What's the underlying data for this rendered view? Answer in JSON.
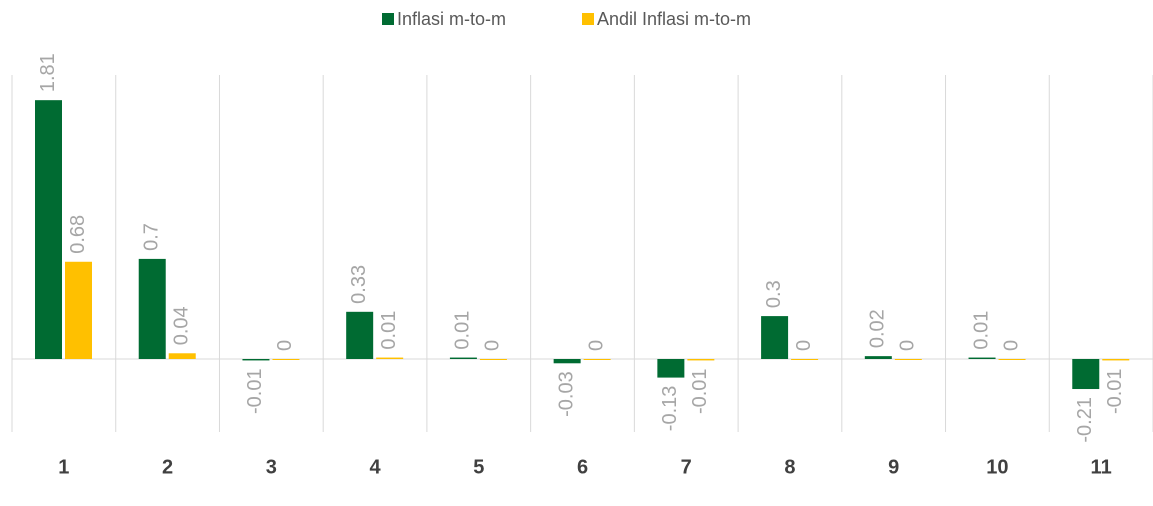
{
  "chart_data": {
    "type": "bar",
    "categories": [
      "1",
      "2",
      "3",
      "4",
      "5",
      "6",
      "7",
      "8",
      "9",
      "10",
      "11"
    ],
    "series": [
      {
        "name": "Inflasi m-to-m",
        "color": "#006b32",
        "values": [
          1.81,
          0.7,
          -0.01,
          0.33,
          0.01,
          -0.03,
          -0.13,
          0.3,
          0.02,
          0.01,
          -0.21
        ]
      },
      {
        "name": "Andil Inflasi m-to-m",
        "color": "#ffc000",
        "values": [
          0.68,
          0.04,
          0,
          0.01,
          0,
          0,
          -0.01,
          0,
          0,
          0,
          -0.01
        ]
      }
    ],
    "ylim": [
      -0.5,
      2.0
    ],
    "legend": "top"
  }
}
